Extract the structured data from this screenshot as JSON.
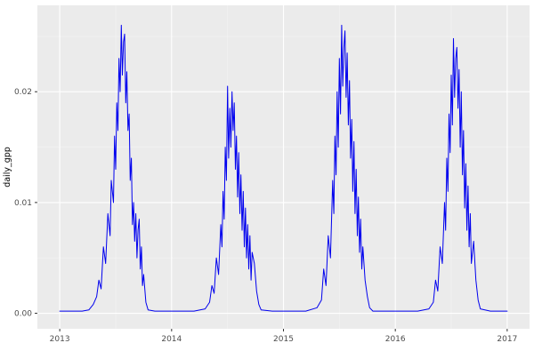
{
  "chart_data": {
    "type": "line",
    "title": "",
    "xlabel": "",
    "ylabel": "daily_gpp",
    "x_ticks": [
      2013,
      2014,
      2015,
      2016,
      2017
    ],
    "x_tick_labels": [
      "2013",
      "2014",
      "2015",
      "2016",
      "2017"
    ],
    "x_minor": [
      2013.5,
      2014.5,
      2015.5,
      2016.5
    ],
    "y_ticks": [
      0.0,
      0.01,
      0.02
    ],
    "y_tick_labels": [
      "0.00",
      "0.01",
      "0.02"
    ],
    "y_minor": [
      0.005,
      0.015,
      0.025
    ],
    "xlim": [
      2012.8,
      2017.2
    ],
    "ylim": [
      -0.0014,
      0.0278
    ],
    "grid": "on",
    "legend": "none",
    "line_color": "#0000ee",
    "panel_background": "#ebebeb",
    "major_grid_color": "#ffffff",
    "minor_grid_color": "#f5f5f5",
    "tick_color": "#333333",
    "tick_label_color": "#4d4d4d",
    "axis_title_color": "#000000",
    "points": [
      [
        2013.0,
        0.0002
      ],
      [
        2013.1,
        0.0002
      ],
      [
        2013.2,
        0.0002
      ],
      [
        2013.26,
        0.0003
      ],
      [
        2013.3,
        0.0008
      ],
      [
        2013.33,
        0.0015
      ],
      [
        2013.35,
        0.003
      ],
      [
        2013.37,
        0.0022
      ],
      [
        2013.39,
        0.006
      ],
      [
        2013.41,
        0.0045
      ],
      [
        2013.43,
        0.009
      ],
      [
        2013.45,
        0.007
      ],
      [
        2013.46,
        0.012
      ],
      [
        2013.48,
        0.01
      ],
      [
        2013.49,
        0.016
      ],
      [
        2013.5,
        0.013
      ],
      [
        2013.51,
        0.019
      ],
      [
        2013.52,
        0.0165
      ],
      [
        2013.53,
        0.023
      ],
      [
        2013.54,
        0.02
      ],
      [
        2013.55,
        0.026
      ],
      [
        2013.56,
        0.0215
      ],
      [
        2013.57,
        0.0245
      ],
      [
        2013.58,
        0.0252
      ],
      [
        2013.59,
        0.019
      ],
      [
        2013.6,
        0.0218
      ],
      [
        2013.61,
        0.0165
      ],
      [
        2013.62,
        0.018
      ],
      [
        2013.63,
        0.012
      ],
      [
        2013.64,
        0.014
      ],
      [
        2013.65,
        0.008
      ],
      [
        2013.66,
        0.01
      ],
      [
        2013.67,
        0.0065
      ],
      [
        2013.68,
        0.009
      ],
      [
        2013.69,
        0.005
      ],
      [
        2013.7,
        0.0075
      ],
      [
        2013.71,
        0.0085
      ],
      [
        2013.72,
        0.004
      ],
      [
        2013.73,
        0.006
      ],
      [
        2013.74,
        0.0025
      ],
      [
        2013.75,
        0.0035
      ],
      [
        2013.77,
        0.001
      ],
      [
        2013.79,
        0.0003
      ],
      [
        2013.85,
        0.0002
      ],
      [
        2013.95,
        0.0002
      ],
      [
        2014.05,
        0.0002
      ],
      [
        2014.2,
        0.0002
      ],
      [
        2014.3,
        0.0004
      ],
      [
        2014.34,
        0.001
      ],
      [
        2014.36,
        0.0025
      ],
      [
        2014.38,
        0.0018
      ],
      [
        2014.4,
        0.005
      ],
      [
        2014.42,
        0.0035
      ],
      [
        2014.44,
        0.008
      ],
      [
        2014.45,
        0.006
      ],
      [
        2014.46,
        0.011
      ],
      [
        2014.47,
        0.0085
      ],
      [
        2014.48,
        0.015
      ],
      [
        2014.49,
        0.012
      ],
      [
        2014.5,
        0.0205
      ],
      [
        2014.51,
        0.014
      ],
      [
        2014.52,
        0.0185
      ],
      [
        2014.53,
        0.015
      ],
      [
        2014.54,
        0.02
      ],
      [
        2014.55,
        0.0165
      ],
      [
        2014.56,
        0.019
      ],
      [
        2014.57,
        0.013
      ],
      [
        2014.58,
        0.016
      ],
      [
        2014.59,
        0.0105
      ],
      [
        2014.6,
        0.0145
      ],
      [
        2014.61,
        0.009
      ],
      [
        2014.62,
        0.0125
      ],
      [
        2014.63,
        0.0075
      ],
      [
        2014.64,
        0.011
      ],
      [
        2014.65,
        0.006
      ],
      [
        2014.66,
        0.0095
      ],
      [
        2014.67,
        0.005
      ],
      [
        2014.68,
        0.008
      ],
      [
        2014.69,
        0.004
      ],
      [
        2014.7,
        0.007
      ],
      [
        2014.71,
        0.003
      ],
      [
        2014.72,
        0.0055
      ],
      [
        2014.74,
        0.0045
      ],
      [
        2014.76,
        0.002
      ],
      [
        2014.78,
        0.0008
      ],
      [
        2014.8,
        0.0003
      ],
      [
        2014.9,
        0.0002
      ],
      [
        2015.0,
        0.0002
      ],
      [
        2015.2,
        0.0002
      ],
      [
        2015.3,
        0.0005
      ],
      [
        2015.34,
        0.0012
      ],
      [
        2015.36,
        0.004
      ],
      [
        2015.38,
        0.0025
      ],
      [
        2015.4,
        0.007
      ],
      [
        2015.42,
        0.005
      ],
      [
        2015.44,
        0.012
      ],
      [
        2015.45,
        0.009
      ],
      [
        2015.46,
        0.016
      ],
      [
        2015.47,
        0.0125
      ],
      [
        2015.48,
        0.02
      ],
      [
        2015.49,
        0.015
      ],
      [
        2015.5,
        0.023
      ],
      [
        2015.51,
        0.018
      ],
      [
        2015.52,
        0.026
      ],
      [
        2015.53,
        0.0205
      ],
      [
        2015.54,
        0.024
      ],
      [
        2015.55,
        0.0255
      ],
      [
        2015.56,
        0.0195
      ],
      [
        2015.57,
        0.0235
      ],
      [
        2015.58,
        0.017
      ],
      [
        2015.59,
        0.021
      ],
      [
        2015.6,
        0.014
      ],
      [
        2015.61,
        0.0175
      ],
      [
        2015.62,
        0.011
      ],
      [
        2015.63,
        0.0155
      ],
      [
        2015.64,
        0.009
      ],
      [
        2015.65,
        0.013
      ],
      [
        2015.66,
        0.007
      ],
      [
        2015.67,
        0.0105
      ],
      [
        2015.68,
        0.0055
      ],
      [
        2015.69,
        0.0085
      ],
      [
        2015.7,
        0.004
      ],
      [
        2015.71,
        0.006
      ],
      [
        2015.73,
        0.003
      ],
      [
        2015.75,
        0.0015
      ],
      [
        2015.77,
        0.0005
      ],
      [
        2015.8,
        0.0002
      ],
      [
        2015.9,
        0.0002
      ],
      [
        2016.0,
        0.0002
      ],
      [
        2016.2,
        0.0002
      ],
      [
        2016.3,
        0.0004
      ],
      [
        2016.34,
        0.001
      ],
      [
        2016.36,
        0.003
      ],
      [
        2016.38,
        0.002
      ],
      [
        2016.4,
        0.006
      ],
      [
        2016.42,
        0.0045
      ],
      [
        2016.44,
        0.01
      ],
      [
        2016.45,
        0.0075
      ],
      [
        2016.46,
        0.014
      ],
      [
        2016.47,
        0.011
      ],
      [
        2016.48,
        0.018
      ],
      [
        2016.49,
        0.0145
      ],
      [
        2016.5,
        0.0215
      ],
      [
        2016.51,
        0.017
      ],
      [
        2016.52,
        0.0248
      ],
      [
        2016.53,
        0.0195
      ],
      [
        2016.54,
        0.023
      ],
      [
        2016.55,
        0.024
      ],
      [
        2016.56,
        0.0185
      ],
      [
        2016.57,
        0.022
      ],
      [
        2016.58,
        0.015
      ],
      [
        2016.59,
        0.02
      ],
      [
        2016.6,
        0.0125
      ],
      [
        2016.61,
        0.0165
      ],
      [
        2016.62,
        0.0095
      ],
      [
        2016.63,
        0.0135
      ],
      [
        2016.64,
        0.0075
      ],
      [
        2016.65,
        0.0115
      ],
      [
        2016.66,
        0.006
      ],
      [
        2016.67,
        0.009
      ],
      [
        2016.68,
        0.0045
      ],
      [
        2016.7,
        0.0065
      ],
      [
        2016.72,
        0.003
      ],
      [
        2016.74,
        0.0012
      ],
      [
        2016.76,
        0.0004
      ],
      [
        2016.85,
        0.0002
      ],
      [
        2016.95,
        0.0002
      ],
      [
        2017.0,
        0.0002
      ]
    ]
  }
}
